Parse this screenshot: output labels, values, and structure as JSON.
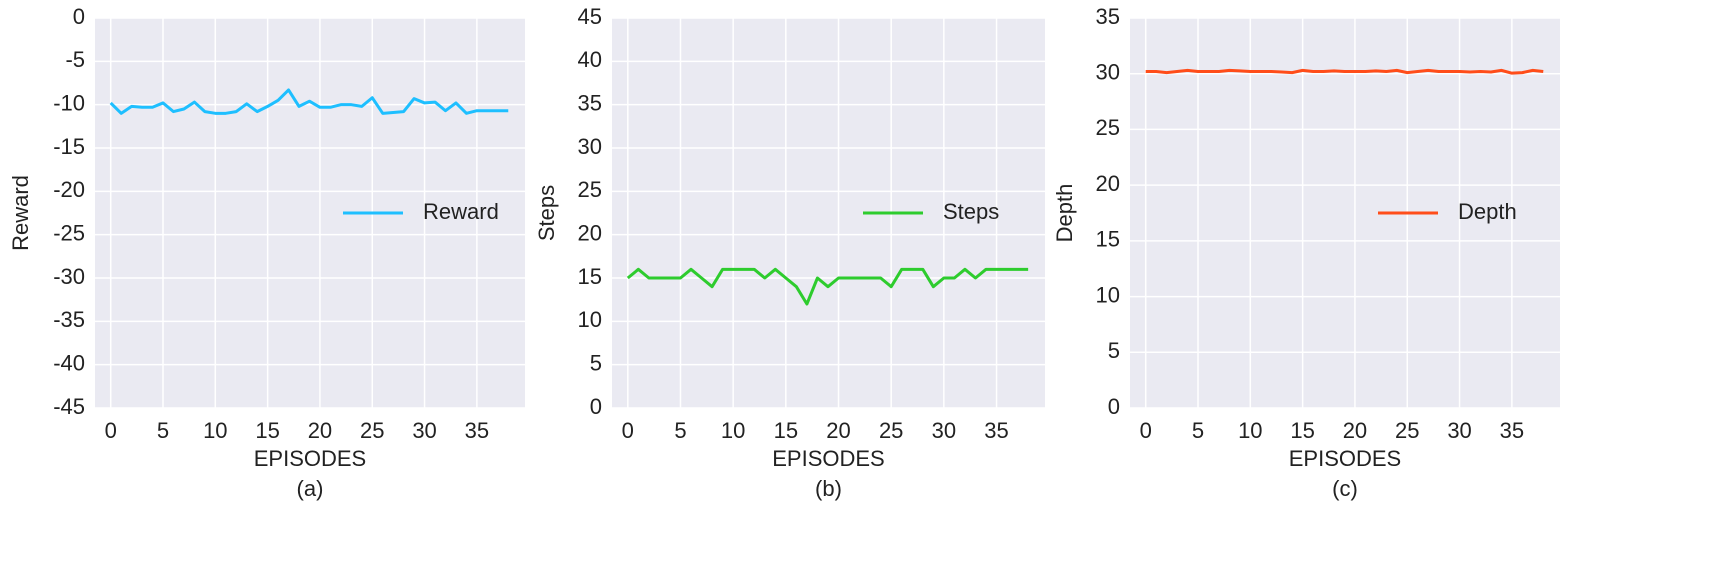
{
  "chart_data": [
    {
      "type": "line",
      "xlabel": "EPISODES",
      "ylabel": "Reward",
      "caption": "(a)",
      "x": [
        0,
        1,
        2,
        3,
        4,
        5,
        6,
        7,
        8,
        9,
        10,
        11,
        12,
        13,
        14,
        15,
        16,
        17,
        18,
        19,
        20,
        21,
        22,
        23,
        24,
        25,
        26,
        27,
        28,
        29,
        30,
        31,
        32,
        33,
        34,
        35,
        36,
        37,
        38
      ],
      "series": [
        {
          "name": "Reward",
          "color": "#1ebfff",
          "values": [
            -9.8,
            -11,
            -10.2,
            -10.3,
            -10.3,
            -9.8,
            -10.8,
            -10.5,
            -9.7,
            -10.8,
            -11,
            -11,
            -10.8,
            -9.9,
            -10.8,
            -10.2,
            -9.5,
            -8.3,
            -10.2,
            -9.6,
            -10.3,
            -10.3,
            -10,
            -10,
            -10.2,
            -9.2,
            -11,
            -10.9,
            -10.8,
            -9.3,
            -9.8,
            -9.7,
            -10.7,
            -9.8,
            -11,
            -10.7,
            -10.7,
            -10.7,
            -10.7
          ]
        }
      ],
      "xlim": [
        -1.5,
        39.6
      ],
      "xticks": [
        0,
        5,
        10,
        15,
        20,
        25,
        30,
        35
      ],
      "ylim": [
        -45,
        0
      ],
      "yticks": [
        -45,
        -40,
        -35,
        -30,
        -25,
        -20,
        -15,
        -10,
        -5,
        0
      ],
      "grid": true,
      "legend": "center right"
    },
    {
      "type": "line",
      "xlabel": "EPISODES",
      "ylabel": "Steps",
      "caption": "(b)",
      "x": [
        0,
        1,
        2,
        3,
        4,
        5,
        6,
        7,
        8,
        9,
        10,
        11,
        12,
        13,
        14,
        15,
        16,
        17,
        18,
        19,
        20,
        21,
        22,
        23,
        24,
        25,
        26,
        27,
        28,
        29,
        30,
        31,
        32,
        33,
        34,
        35,
        36,
        37,
        38
      ],
      "series": [
        {
          "name": "Steps",
          "color": "#2ecc2e",
          "values": [
            15,
            16,
            15,
            15,
            15,
            15,
            16,
            15,
            14,
            16,
            16,
            16,
            16,
            15,
            16,
            15,
            14,
            12,
            15,
            14,
            15,
            15,
            15,
            15,
            15,
            14,
            16,
            16,
            16,
            14,
            15,
            15,
            16,
            15,
            16,
            16,
            16,
            16,
            16
          ]
        }
      ],
      "xlim": [
        -1.5,
        39.6
      ],
      "xticks": [
        0,
        5,
        10,
        15,
        20,
        25,
        30,
        35
      ],
      "ylim": [
        0,
        45
      ],
      "yticks": [
        0,
        5,
        10,
        15,
        20,
        25,
        30,
        35,
        40,
        45
      ],
      "grid": true,
      "legend": "center right"
    },
    {
      "type": "line",
      "xlabel": "EPISODES",
      "ylabel": "Depth",
      "caption": "(c)",
      "x": [
        0,
        1,
        2,
        3,
        4,
        5,
        6,
        7,
        8,
        9,
        10,
        11,
        12,
        13,
        14,
        15,
        16,
        17,
        18,
        19,
        20,
        21,
        22,
        23,
        24,
        25,
        26,
        27,
        28,
        29,
        30,
        31,
        32,
        33,
        34,
        35,
        36,
        37,
        38
      ],
      "series": [
        {
          "name": "Depth",
          "color": "#ff4d1a",
          "values": [
            30.2,
            30.2,
            30.1,
            30.2,
            30.3,
            30.2,
            30.2,
            30.2,
            30.3,
            30.25,
            30.2,
            30.2,
            30.2,
            30.15,
            30.1,
            30.3,
            30.2,
            30.2,
            30.25,
            30.2,
            30.2,
            30.2,
            30.25,
            30.2,
            30.3,
            30.1,
            30.2,
            30.3,
            30.2,
            30.2,
            30.2,
            30.15,
            30.2,
            30.15,
            30.3,
            30.05,
            30.1,
            30.3,
            30.2
          ]
        }
      ],
      "xlim": [
        -1.5,
        39.6
      ],
      "xticks": [
        0,
        5,
        10,
        15,
        20,
        25,
        30,
        35
      ],
      "ylim": [
        0,
        35
      ],
      "yticks": [
        0,
        5,
        10,
        15,
        20,
        25,
        30,
        35
      ],
      "grid": true,
      "legend": "center right"
    }
  ]
}
